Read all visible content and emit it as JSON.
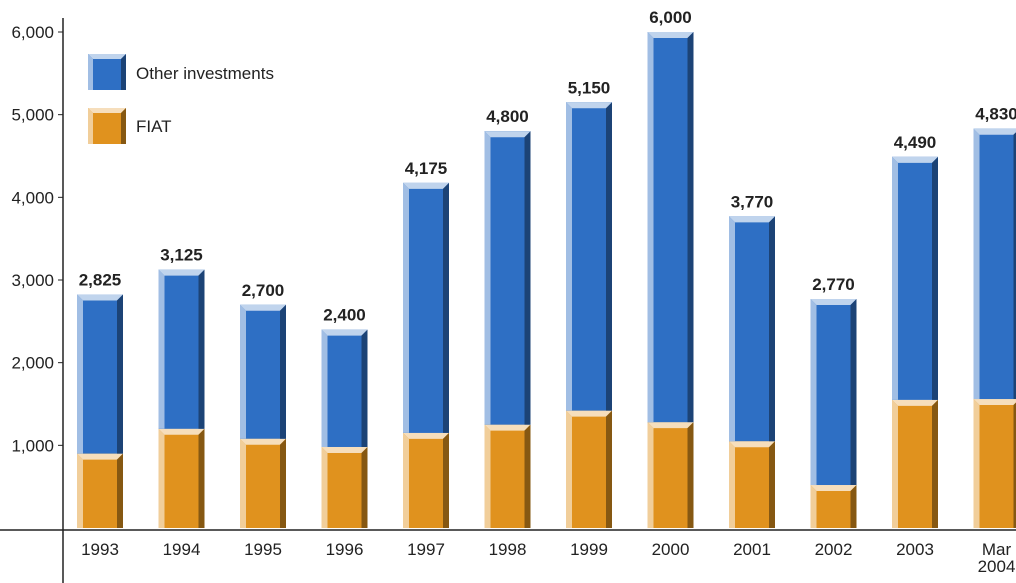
{
  "chart_data": {
    "type": "bar",
    "stacked": true,
    "categories": [
      "1993",
      "1994",
      "1995",
      "1996",
      "1997",
      "1998",
      "1999",
      "2000",
      "2001",
      "2002",
      "2003",
      "Mar 2004"
    ],
    "series": [
      {
        "name": "FIAT",
        "color": "#e0921e",
        "values": [
          900,
          1200,
          1080,
          980,
          1150,
          1250,
          1420,
          1280,
          1050,
          520,
          1550,
          1560
        ]
      },
      {
        "name": "Other investments",
        "color": "#2e6fc4",
        "values": [
          1925,
          1925,
          1620,
          1420,
          3025,
          3550,
          3730,
          4720,
          2720,
          2250,
          2940,
          3270
        ]
      }
    ],
    "totals": [
      2825,
      3125,
      2700,
      2400,
      4175,
      4800,
      5150,
      6000,
      3770,
      2770,
      4490,
      4830
    ],
    "total_labels": [
      "2,825",
      "3,125",
      "2,700",
      "2,400",
      "4,175",
      "4,800",
      "5,150",
      "6,000",
      "3,770",
      "2,770",
      "4,490",
      "4,830"
    ],
    "y_ticks": [
      1000,
      2000,
      3000,
      4000,
      5000,
      6000
    ],
    "y_tick_labels": [
      "1,000",
      "2,000",
      "3,000",
      "4,000",
      "5,000",
      "6,000"
    ],
    "ylim": [
      0,
      6000
    ],
    "legend": {
      "placement": "top-left",
      "entries": [
        "Other investments",
        "FIAT"
      ]
    },
    "title": "",
    "xlabel": "",
    "ylabel": "",
    "grid": false
  }
}
